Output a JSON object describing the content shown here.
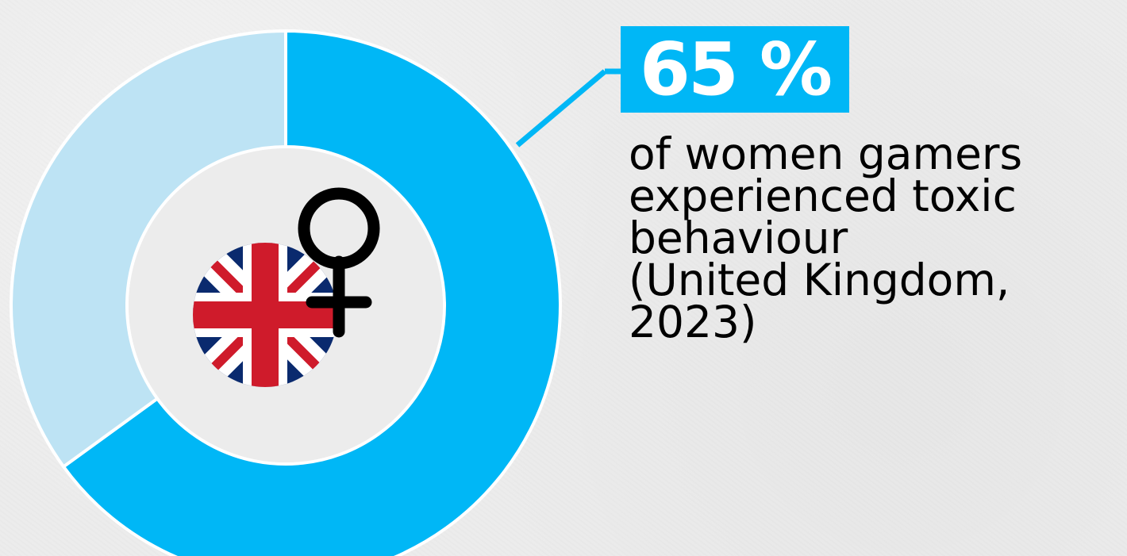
{
  "chart_data": {
    "type": "pie",
    "style": "donut",
    "categories": [
      "experienced toxic behaviour",
      "other"
    ],
    "values": [
      65,
      35
    ],
    "colors": [
      "#00b7f6",
      "#bde3f4"
    ],
    "start": "top",
    "direction": "clockwise"
  },
  "callout": {
    "value_text": "65 %",
    "description_lines": [
      "of women gamers",
      "experienced toxic",
      "behaviour",
      "(United Kingdom,",
      "2023)"
    ]
  },
  "icons": {
    "flag": "uk-flag-icon",
    "symbol": "female-symbol-icon"
  },
  "colors": {
    "accent": "#00b7f6",
    "remainder": "#bde3f4",
    "background": "#ececec",
    "text": "#000000",
    "badge_text": "#ffffff"
  }
}
